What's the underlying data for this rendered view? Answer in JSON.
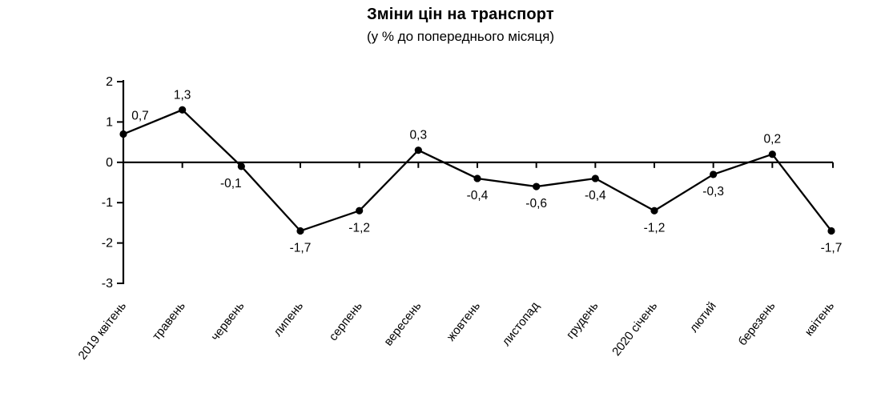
{
  "chart_data": {
    "type": "line",
    "title": "Зміни цін на транспорт",
    "subtitle": "(у % до попереднього місяця)",
    "categories": [
      "2019 квітень",
      "травень",
      "червень",
      "липень",
      "серпень",
      "вересень",
      "жовтень",
      "листопад",
      "грудень",
      "2020 січень",
      "лютий",
      "березень",
      "квітень"
    ],
    "series": [
      {
        "name": "Зміни цін на транспорт, % до попереднього місяця",
        "values": [
          0.7,
          1.3,
          -0.1,
          -1.7,
          -1.2,
          0.3,
          -0.4,
          -0.6,
          -0.4,
          -1.2,
          -0.3,
          0.2,
          -1.7
        ],
        "value_labels": [
          "0,7",
          "1,3",
          "-0,1",
          "-1,7",
          "-1,2",
          "0,3",
          "-0,4",
          "-0,6",
          "-0,4",
          "-1,2",
          "-0,3",
          "0,2",
          "-1,7"
        ]
      }
    ],
    "xlabel": "",
    "ylabel": "",
    "ylim": [
      -3,
      2
    ],
    "yticks": [
      2,
      1,
      0,
      -1,
      -2,
      -3
    ],
    "ytick_labels": [
      "2",
      "1",
      "0",
      "-1",
      "-2",
      "-3"
    ],
    "grid": false,
    "legend": false,
    "marker": "circle",
    "x_label_rotation_deg": -52,
    "colors": {
      "line": "#000000",
      "marker": "#000000",
      "axis": "#000000",
      "text": "#000000",
      "background": "#ffffff"
    }
  }
}
